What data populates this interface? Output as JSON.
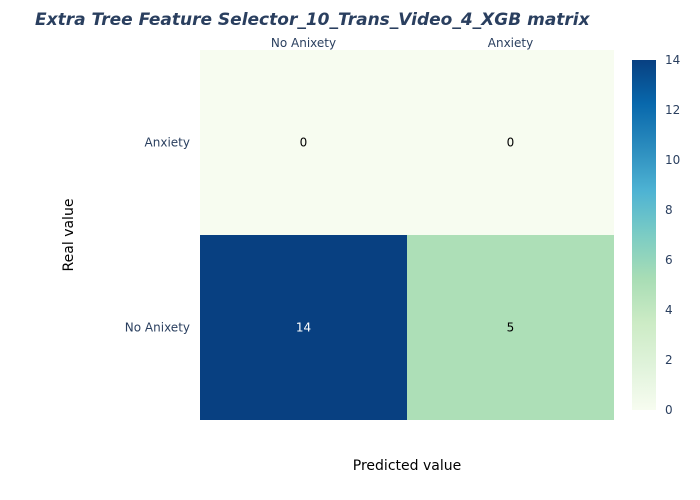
{
  "chart_data": {
    "type": "heatmap",
    "title": "Extra Tree Feature Selector_10_Trans_Video_4_XGB matrix",
    "xlabel": "Predicted value",
    "ylabel": "Real value",
    "x_categories": [
      "No Anixety",
      "Anxiety"
    ],
    "y_categories": [
      "Anxiety",
      "No Anixety"
    ],
    "z": [
      [
        0,
        0
      ],
      [
        14,
        5
      ]
    ],
    "colorscale": "GnBu",
    "zrange": [
      0,
      14
    ],
    "colorbar_ticks": [
      "0",
      "2",
      "4",
      "6",
      "8",
      "10",
      "12",
      "14"
    ],
    "x_axis_side": "top"
  }
}
